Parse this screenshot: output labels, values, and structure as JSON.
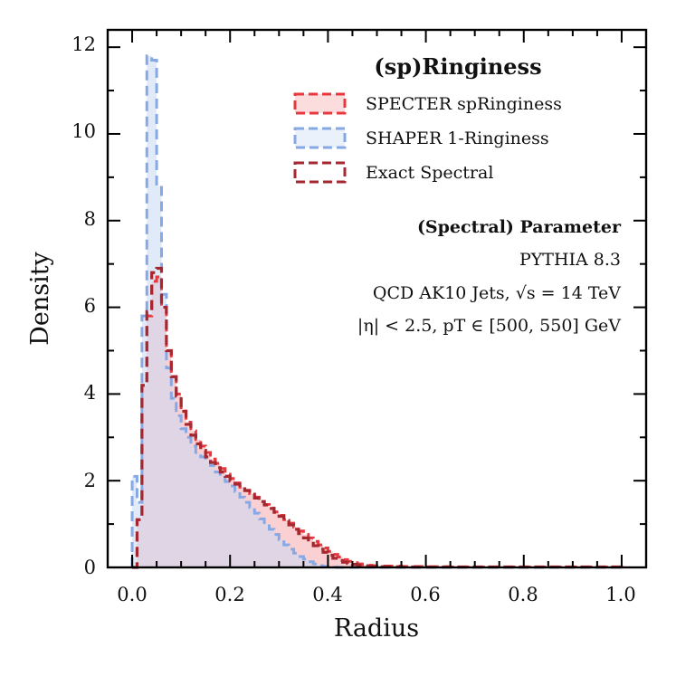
{
  "chart_data": {
    "type": "histogram",
    "xlabel": "Radius",
    "ylabel": "Density",
    "xlim": [
      -0.05,
      1.05
    ],
    "ylim": [
      0,
      12.4
    ],
    "xticks": [
      "0.0",
      "0.2",
      "0.4",
      "0.6",
      "0.8",
      "1.0"
    ],
    "xtick_values": [
      0.0,
      0.2,
      0.4,
      0.6,
      0.8,
      1.0
    ],
    "yticks": [
      "0",
      "2",
      "4",
      "6",
      "8",
      "10",
      "12"
    ],
    "ytick_values": [
      0,
      2,
      4,
      6,
      8,
      10,
      12
    ],
    "legend": {
      "title": "(sp)Ringiness",
      "placement": "top-right",
      "entries": [
        {
          "label": "SPECTER spRinginess",
          "color": "#e8373e"
        },
        {
          "label": "SHAPER 1-Ringiness",
          "color": "#86a9e6"
        },
        {
          "label": "Exact Spectral",
          "color": "#a52830"
        }
      ]
    },
    "annotations": [
      "(Spectral) Parameter",
      "PYTHIA 8.3",
      "QCD AK10 Jets, √s = 14 TeV",
      "|η| < 2.5, pT ∈ [500, 550] GeV"
    ],
    "bin_edges": [
      0.0,
      0.01,
      0.02,
      0.03,
      0.04,
      0.05,
      0.06,
      0.07,
      0.08,
      0.09,
      0.1,
      0.11,
      0.12,
      0.13,
      0.14,
      0.15,
      0.16,
      0.17,
      0.18,
      0.19,
      0.2,
      0.21,
      0.22,
      0.23,
      0.24,
      0.25,
      0.26,
      0.27,
      0.28,
      0.29,
      0.3,
      0.31,
      0.32,
      0.33,
      0.34,
      0.35,
      0.36,
      0.37,
      0.38,
      0.39,
      0.4,
      0.41,
      0.42,
      0.43,
      0.44,
      0.45,
      0.46,
      0.47,
      0.48,
      0.49,
      0.5,
      0.55,
      0.6,
      0.65,
      0.7,
      0.75,
      0.8,
      0.85,
      0.9,
      0.95,
      1.0
    ],
    "series": [
      {
        "name": "SPECTER spRinginess",
        "color": "#e8373e",
        "fill": "#f7a9ad",
        "values": [
          0.0,
          1.1,
          4.2,
          5.8,
          6.6,
          6.7,
          6.0,
          5.0,
          4.4,
          4.0,
          3.65,
          3.35,
          3.15,
          2.95,
          2.8,
          2.65,
          2.5,
          2.4,
          2.28,
          2.15,
          2.05,
          1.95,
          1.85,
          1.78,
          1.7,
          1.62,
          1.52,
          1.45,
          1.37,
          1.28,
          1.2,
          1.1,
          1.02,
          0.93,
          0.84,
          0.76,
          0.68,
          0.6,
          0.52,
          0.45,
          0.37,
          0.3,
          0.24,
          0.18,
          0.14,
          0.11,
          0.08,
          0.06,
          0.05,
          0.04,
          0.03,
          0.02,
          0.015,
          0.01,
          0.01,
          0.01,
          0.01,
          0.01,
          0.01,
          0.01
        ]
      },
      {
        "name": "SHAPER 1-Ringiness",
        "color": "#86a9e6",
        "fill": "#c8d8f4",
        "values": [
          2.1,
          1.5,
          5.8,
          11.8,
          11.7,
          8.8,
          6.3,
          4.6,
          3.9,
          3.5,
          3.2,
          3.0,
          2.8,
          2.65,
          2.55,
          2.45,
          2.35,
          2.2,
          2.1,
          1.98,
          1.88,
          1.75,
          1.62,
          1.5,
          1.38,
          1.25,
          1.12,
          1.0,
          0.88,
          0.76,
          0.64,
          0.52,
          0.42,
          0.33,
          0.25,
          0.19,
          0.13,
          0.08,
          0.04,
          0.02,
          0.01,
          0.005,
          0.0,
          0.0,
          0.0,
          0.0,
          0.0,
          0.0,
          0.0,
          0.0,
          0.0,
          0.0,
          0.0,
          0.0,
          0.0,
          0.0,
          0.0,
          0.0,
          0.0,
          0.0
        ]
      },
      {
        "name": "Exact Spectral",
        "color": "#a52830",
        "fill": "none",
        "values": [
          0.0,
          1.1,
          4.2,
          5.9,
          6.8,
          6.9,
          6.0,
          5.0,
          4.4,
          3.95,
          3.6,
          3.3,
          3.05,
          2.85,
          2.7,
          2.55,
          2.42,
          2.3,
          2.2,
          2.1,
          2.0,
          1.92,
          1.85,
          1.77,
          1.69,
          1.6,
          1.52,
          1.44,
          1.36,
          1.27,
          1.18,
          1.08,
          0.98,
          0.88,
          0.78,
          0.68,
          0.59,
          0.5,
          0.42,
          0.35,
          0.28,
          0.21,
          0.16,
          0.12,
          0.09,
          0.07,
          0.05,
          0.04,
          0.03,
          0.02,
          0.015,
          0.01,
          0.01,
          0.01,
          0.01,
          0.01,
          0.01,
          0.01,
          0.01,
          0.01
        ]
      }
    ]
  }
}
